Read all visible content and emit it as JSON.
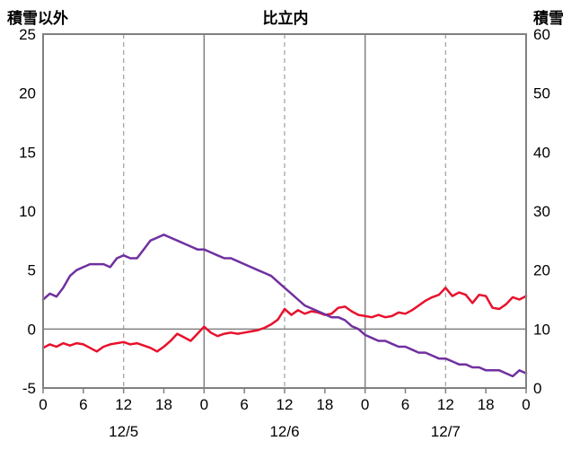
{
  "header": {
    "left_axis_title": "積雪以外",
    "chart_title": "比立内",
    "right_axis_title": "積雪"
  },
  "chart_data": {
    "type": "line",
    "title": "比立内",
    "left_axis": {
      "label": "積雪以外",
      "min": -5,
      "max": 25,
      "ticks": [
        25,
        20,
        15,
        10,
        5,
        0,
        -5
      ]
    },
    "right_axis": {
      "label": "積雪",
      "min": 0,
      "max": 60,
      "ticks": [
        60,
        50,
        40,
        30,
        20,
        10,
        0
      ]
    },
    "x_axis": {
      "hours_total": 72,
      "tick_step": 6,
      "tick_labels": [
        "0",
        "6",
        "12",
        "18",
        "0",
        "6",
        "12",
        "18",
        "0",
        "6",
        "12",
        "18",
        "0"
      ],
      "day_labels": [
        {
          "label": "12/5",
          "hour": 12
        },
        {
          "label": "12/6",
          "hour": 36
        },
        {
          "label": "12/7",
          "hour": 60
        }
      ],
      "solid_gridline_hours": [
        24,
        48
      ],
      "dashed_gridline_hours": [
        12,
        36,
        60
      ]
    },
    "series": [
      {
        "name": "temperature-left-axis",
        "axis": "left",
        "color": "#e8112d",
        "width": 2.5,
        "values": [
          -1.6,
          -1.3,
          -1.5,
          -1.2,
          -1.4,
          -1.2,
          -1.3,
          -1.6,
          -1.9,
          -1.5,
          -1.3,
          -1.2,
          -1.1,
          -1.3,
          -1.2,
          -1.4,
          -1.6,
          -1.9,
          -1.5,
          -1.0,
          -0.4,
          -0.7,
          -1.0,
          -0.4,
          0.2,
          -0.3,
          -0.6,
          -0.4,
          -0.3,
          -0.4,
          -0.3,
          -0.2,
          -0.1,
          0.1,
          0.4,
          0.8,
          1.7,
          1.2,
          1.6,
          1.3,
          1.5,
          1.4,
          1.2,
          1.3,
          1.8,
          1.9,
          1.5,
          1.2,
          1.1,
          1.0,
          1.2,
          1.0,
          1.1,
          1.4,
          1.3,
          1.6,
          2.0,
          2.4,
          2.7,
          2.9,
          3.5,
          2.8,
          3.1,
          2.9,
          2.2,
          2.9,
          2.8,
          1.8,
          1.7,
          2.1,
          2.7,
          2.5,
          2.8
        ]
      },
      {
        "name": "snow-depth-right-axis",
        "axis": "right",
        "color": "#7030a0",
        "width": 2.5,
        "values": [
          15,
          16,
          15.5,
          17,
          19,
          20,
          20.5,
          21,
          21,
          21,
          20.5,
          22,
          22.5,
          22,
          22,
          23.5,
          25,
          25.5,
          26,
          25.5,
          25,
          24.5,
          24,
          23.5,
          23.5,
          23,
          22.5,
          22,
          22,
          21.5,
          21,
          20.5,
          20,
          19.5,
          19,
          18,
          17,
          16,
          15,
          14,
          13.5,
          13,
          12.5,
          12,
          12,
          11.5,
          10.5,
          10,
          9,
          8.5,
          8,
          8,
          7.5,
          7,
          7,
          6.5,
          6,
          6,
          5.5,
          5,
          5,
          4.5,
          4,
          4,
          3.5,
          3.5,
          3,
          3,
          3,
          2.5,
          2,
          3,
          2.5
        ]
      }
    ],
    "styles": {
      "border_color": "#808080",
      "zero_line_color": "#808080",
      "solid_grid_color": "#808080",
      "dashed_grid_color": "#a6a6a6",
      "tick_color": "#808080",
      "text_color": "#000000"
    }
  }
}
